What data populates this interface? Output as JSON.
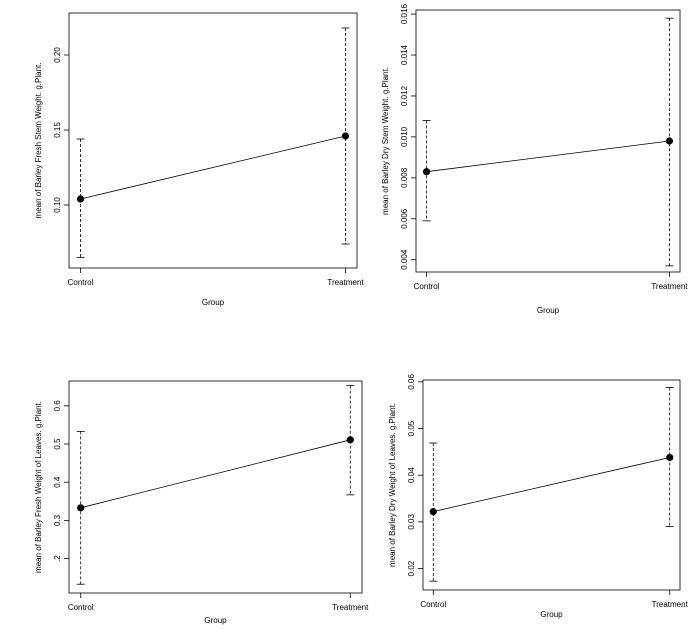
{
  "chart_data": [
    {
      "type": "line",
      "error_bars": "dashed",
      "xlabel": "Group",
      "ylabel": "mean of Barley Fresh Stem Weight. g.Plant.",
      "categories": [
        "Control",
        "Treatment"
      ],
      "values": [
        0.104,
        0.146
      ],
      "error_low": [
        0.065,
        0.074
      ],
      "error_high": [
        0.144,
        0.218
      ],
      "yticks": [
        "0.10",
        "0.15",
        "0.20"
      ],
      "ylim": [
        0.058,
        0.228
      ],
      "grid": false
    },
    {
      "type": "line",
      "error_bars": "dashed",
      "xlabel": "Group",
      "ylabel": "mean of Barley Dry Stem Weight. g.Plant.",
      "categories": [
        "Control",
        "Treatment"
      ],
      "values": [
        0.0083,
        0.0098
      ],
      "error_low": [
        0.0059,
        0.0037
      ],
      "error_high": [
        0.0108,
        0.0158
      ],
      "yticks": [
        "0.004",
        "0.006",
        "0.008",
        "0.010",
        "0.012",
        "0.014",
        "0.016"
      ],
      "ylim": [
        0.0034,
        0.0162
      ],
      "grid": false
    },
    {
      "type": "line",
      "error_bars": "dashed",
      "xlabel": "Group",
      "ylabel": "mean of Barley Fresh Weight of Leaves. g.Plant.",
      "categories": [
        "Control",
        "Treatment"
      ],
      "values": [
        0.333,
        0.511
      ],
      "error_low": [
        0.133,
        0.367
      ],
      "error_high": [
        0.533,
        0.653
      ],
      "yticks": [
        ".2",
        "0.3",
        "0.4",
        "0.5",
        "0.6"
      ],
      "ylim": [
        0.11,
        0.665
      ],
      "grid": false
    },
    {
      "type": "line",
      "error_bars": "dashed",
      "xlabel": "Group",
      "ylabel": "mean of Barley Dry Weight of Leaves. g.Plant.",
      "categories": [
        "Control",
        "Treatment"
      ],
      "values": [
        0.0322,
        0.0438
      ],
      "error_low": [
        0.0173,
        0.029
      ],
      "error_high": [
        0.0469,
        0.0588
      ],
      "yticks": [
        "0.02",
        "0.03",
        "0.04",
        "0.05",
        "0.06"
      ],
      "ylim": [
        0.0154,
        0.0604
      ],
      "grid": false
    }
  ]
}
